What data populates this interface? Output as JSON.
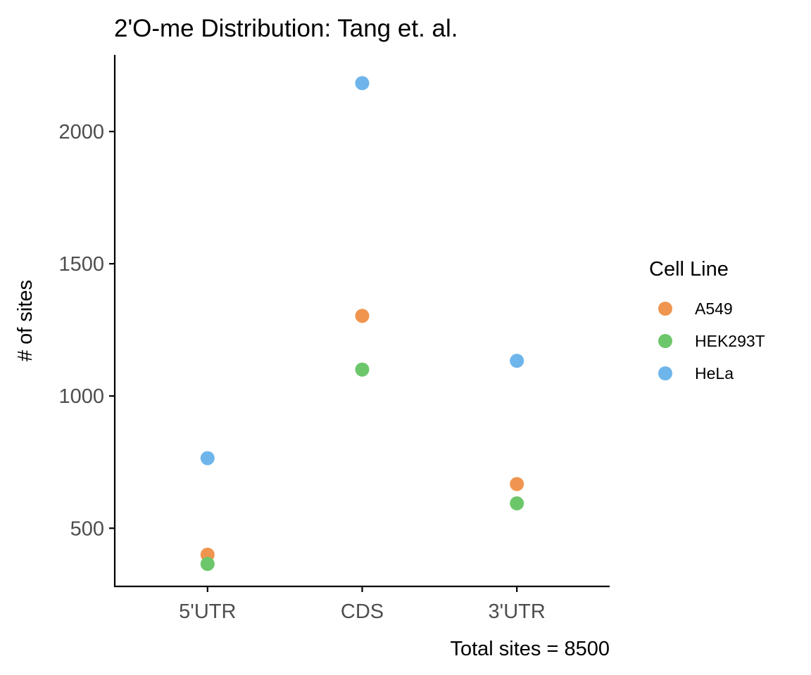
{
  "chart_data": {
    "type": "scatter",
    "title": "2'O-me Distribution: Tang et. al.",
    "xlabel": "Total sites = 8500",
    "ylabel": "# of sites",
    "categories": [
      "5'UTR",
      "CDS",
      "3'UTR"
    ],
    "yticks": [
      500,
      1000,
      1500,
      2000
    ],
    "ytick_labels": [
      "500",
      "1000",
      "1500",
      "2000"
    ],
    "ylim": [
      280,
      2290
    ],
    "grid": false,
    "legend": {
      "title": "Cell Line",
      "placement": "right"
    },
    "series": [
      {
        "name": "A549",
        "color": "#F0954F",
        "values": [
          400,
          1303,
          667
        ]
      },
      {
        "name": "HEK293T",
        "color": "#6CC76A",
        "values": [
          365,
          1100,
          594
        ]
      },
      {
        "name": "HeLa",
        "color": "#6EB5EB",
        "values": [
          765,
          2183,
          1133
        ]
      }
    ]
  }
}
